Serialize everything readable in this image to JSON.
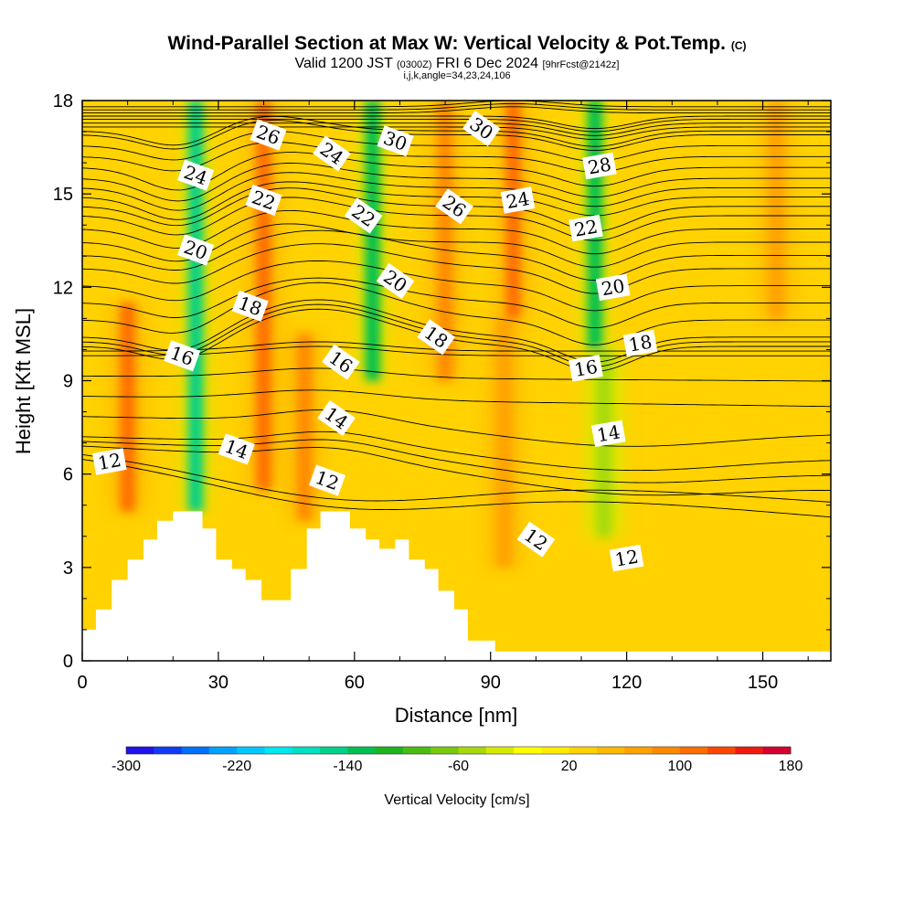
{
  "header": {
    "title": "Wind-Parallel Section at Max W: Vertical Velocity & Pot.Temp.",
    "title_mark": "(C)",
    "valid_prefix": "Valid 1200 JST",
    "valid_utc": "(0300Z)",
    "valid_date": "FRI 6 Dec 2024",
    "fcst": "[9hrFcst@2142z]",
    "indices": "i,j,k,angle=34,23,24,106"
  },
  "chart_data": {
    "type": "heatmap",
    "xlabel": "Distance [nm]",
    "ylabel": "Height [Kft MSL]",
    "x_ticks": [
      0,
      30,
      60,
      90,
      120,
      150
    ],
    "y_ticks": [
      0,
      3,
      6,
      9,
      12,
      15,
      18
    ],
    "xlim": [
      0,
      165
    ],
    "ylim": [
      0,
      18
    ],
    "colorbar": {
      "label": "Vertical Velocity [cm/s]",
      "tick_labels": [
        "-300",
        "-220",
        "-140",
        "-60",
        "20",
        "100",
        "180"
      ],
      "tick_values": [
        -300,
        -220,
        -140,
        -60,
        20,
        100,
        180
      ],
      "range": [
        -300,
        180
      ],
      "step": 20,
      "colors": [
        "#1f13e8",
        "#0f3cf2",
        "#0070ff",
        "#00a2ff",
        "#00c8ff",
        "#00e6ee",
        "#00e0c0",
        "#00d08a",
        "#00c050",
        "#1eb41e",
        "#4cbc14",
        "#78c80e",
        "#a6d80a",
        "#d6ea00",
        "#ffff00",
        "#ffea00",
        "#ffd200",
        "#ffba00",
        "#ffa200",
        "#ff8a00",
        "#ff6e00",
        "#ff4600",
        "#ee1a10",
        "#d40030"
      ]
    },
    "updrafts": [
      {
        "x": 10,
        "z0": 4.8,
        "z1": 11.5,
        "w": 110
      },
      {
        "x": 40,
        "z0": 5.5,
        "z1": 18,
        "w": 100
      },
      {
        "x": 49,
        "z0": 4.5,
        "z1": 10.5,
        "w": 95
      },
      {
        "x": 80,
        "z0": 9,
        "z1": 18,
        "w": 85
      },
      {
        "x": 95,
        "z0": 11,
        "z1": 18,
        "w": 115
      },
      {
        "x": 93,
        "z0": 3,
        "z1": 11,
        "w": 70
      },
      {
        "x": 153,
        "z0": 11,
        "z1": 18,
        "w": 70
      }
    ],
    "downdrafts": [
      {
        "x": 25,
        "z0": 4.8,
        "z1": 18,
        "w": -150
      },
      {
        "x": 64,
        "z0": 9,
        "z1": 18,
        "w": -140
      },
      {
        "x": 113,
        "z0": 10,
        "z1": 18,
        "w": -135
      },
      {
        "x": 115,
        "z0": 4,
        "z1": 10,
        "w": -60
      }
    ],
    "terrain": [
      [
        0,
        1
      ],
      [
        3,
        1
      ],
      [
        3,
        1.65
      ],
      [
        6.5,
        1.65
      ],
      [
        6.5,
        2.6
      ],
      [
        10,
        2.6
      ],
      [
        10,
        3.25
      ],
      [
        13.5,
        3.25
      ],
      [
        13.5,
        3.9
      ],
      [
        16.5,
        3.9
      ],
      [
        16.5,
        4.5
      ],
      [
        20,
        4.5
      ],
      [
        20,
        4.8
      ],
      [
        26.5,
        4.8
      ],
      [
        26.5,
        4.25
      ],
      [
        29.5,
        4.25
      ],
      [
        29.5,
        3.25
      ],
      [
        33,
        3.25
      ],
      [
        33,
        2.95
      ],
      [
        36,
        2.95
      ],
      [
        36,
        2.6
      ],
      [
        39.5,
        2.6
      ],
      [
        39.5,
        1.95
      ],
      [
        46,
        1.95
      ],
      [
        46,
        2.95
      ],
      [
        49.5,
        2.95
      ],
      [
        49.5,
        4.25
      ],
      [
        52.5,
        4.25
      ],
      [
        52.5,
        4.8
      ],
      [
        59,
        4.8
      ],
      [
        59,
        4.25
      ],
      [
        62.5,
        4.25
      ],
      [
        62.5,
        3.9
      ],
      [
        65.5,
        3.9
      ],
      [
        65.5,
        3.6
      ],
      [
        69,
        3.6
      ],
      [
        69,
        3.9
      ],
      [
        72,
        3.9
      ],
      [
        72,
        3.25
      ],
      [
        75.5,
        3.25
      ],
      [
        75.5,
        2.95
      ],
      [
        78.5,
        2.95
      ],
      [
        78.5,
        2.25
      ],
      [
        82,
        2.25
      ],
      [
        82,
        1.65
      ],
      [
        85,
        1.65
      ],
      [
        85,
        0.65
      ],
      [
        91,
        0.65
      ],
      [
        91,
        0.3
      ],
      [
        165,
        0.3
      ]
    ],
    "isentropes": [
      {
        "value": 12,
        "base": 6.6,
        "slope": -0.012,
        "peaks": [
          {
            "x": 57,
            "a": -1.0,
            "s": 28
          }
        ]
      },
      {
        "value": 14,
        "base": 7.2,
        "slope": -0.004,
        "peaks": [
          {
            "x": 55,
            "a": 0.4,
            "s": 12
          },
          {
            "x": 118,
            "a": -0.6,
            "s": 25
          }
        ]
      },
      {
        "value": 16,
        "base": 9.8,
        "slope": 0.0,
        "peaks": [
          {
            "x": 52,
            "a": 0.3,
            "s": 14
          }
        ]
      },
      {
        "value": 18,
        "base": 10.4,
        "slope": 0.0,
        "peaks": [
          {
            "x": 52,
            "a": 1.2,
            "s": 16
          },
          {
            "x": 22,
            "a": -0.6,
            "s": 8
          },
          {
            "x": 113,
            "a": -0.8,
            "s": 8
          }
        ]
      },
      {
        "value": 20,
        "base": 12.6,
        "slope": 0.0,
        "peaks": [
          {
            "x": 52,
            "a": 0.8,
            "s": 16
          },
          {
            "x": 22,
            "a": -0.6,
            "s": 8
          },
          {
            "x": 113,
            "a": -0.8,
            "s": 8
          }
        ]
      },
      {
        "value": 22,
        "base": 14.3,
        "slope": 0.0,
        "peaks": [
          {
            "x": 45,
            "a": 0.6,
            "s": 12
          },
          {
            "x": 22,
            "a": -0.7,
            "s": 8
          },
          {
            "x": 113,
            "a": -0.8,
            "s": 8
          }
        ]
      },
      {
        "value": 24,
        "base": 15.5,
        "slope": 0.0,
        "peaks": [
          {
            "x": 45,
            "a": 0.5,
            "s": 12
          },
          {
            "x": 22,
            "a": -0.8,
            "s": 8
          },
          {
            "x": 113,
            "a": -0.6,
            "s": 8
          }
        ]
      },
      {
        "value": 26,
        "base": 16.9,
        "slope": 0.0,
        "peaks": [
          {
            "x": 40,
            "a": 0.5,
            "s": 12
          },
          {
            "x": 22,
            "a": -0.6,
            "s": 8
          },
          {
            "x": 113,
            "a": -0.5,
            "s": 8
          }
        ]
      },
      {
        "value": 28,
        "base": 17.4,
        "slope": 0.0,
        "peaks": [
          {
            "x": 113,
            "a": -0.4,
            "s": 8
          }
        ]
      },
      {
        "value": 30,
        "base": 17.8,
        "slope": 0.0,
        "peaks": [
          {
            "x": 95,
            "a": 0.2,
            "s": 10
          }
        ]
      }
    ],
    "contour_labels": [
      {
        "text": "12",
        "x": 6,
        "y": 6.4
      },
      {
        "text": "12",
        "x": 54,
        "y": 5.8
      },
      {
        "text": "12",
        "x": 100,
        "y": 3.9
      },
      {
        "text": "12",
        "x": 120,
        "y": 3.3
      },
      {
        "text": "14",
        "x": 34,
        "y": 6.8
      },
      {
        "text": "14",
        "x": 56,
        "y": 7.8
      },
      {
        "text": "14",
        "x": 116,
        "y": 7.3
      },
      {
        "text": "16",
        "x": 22,
        "y": 9.8
      },
      {
        "text": "16",
        "x": 57,
        "y": 9.6
      },
      {
        "text": "16",
        "x": 111,
        "y": 9.4
      },
      {
        "text": "18",
        "x": 37,
        "y": 11.4
      },
      {
        "text": "18",
        "x": 78,
        "y": 10.4
      },
      {
        "text": "18",
        "x": 123,
        "y": 10.2
      },
      {
        "text": "20",
        "x": 25,
        "y": 13.2
      },
      {
        "text": "20",
        "x": 69,
        "y": 12.2
      },
      {
        "text": "20",
        "x": 117,
        "y": 12.0
      },
      {
        "text": "22",
        "x": 40,
        "y": 14.8
      },
      {
        "text": "22",
        "x": 62,
        "y": 14.3
      },
      {
        "text": "22",
        "x": 111,
        "y": 13.9
      },
      {
        "text": "24",
        "x": 25,
        "y": 15.6
      },
      {
        "text": "24",
        "x": 55,
        "y": 16.3
      },
      {
        "text": "24",
        "x": 96,
        "y": 14.8
      },
      {
        "text": "26",
        "x": 41,
        "y": 16.9
      },
      {
        "text": "26",
        "x": 82,
        "y": 14.6
      },
      {
        "text": "28",
        "x": 114,
        "y": 15.9
      },
      {
        "text": "30",
        "x": 69,
        "y": 16.7
      },
      {
        "text": "30",
        "x": 88,
        "y": 17.1
      }
    ]
  }
}
